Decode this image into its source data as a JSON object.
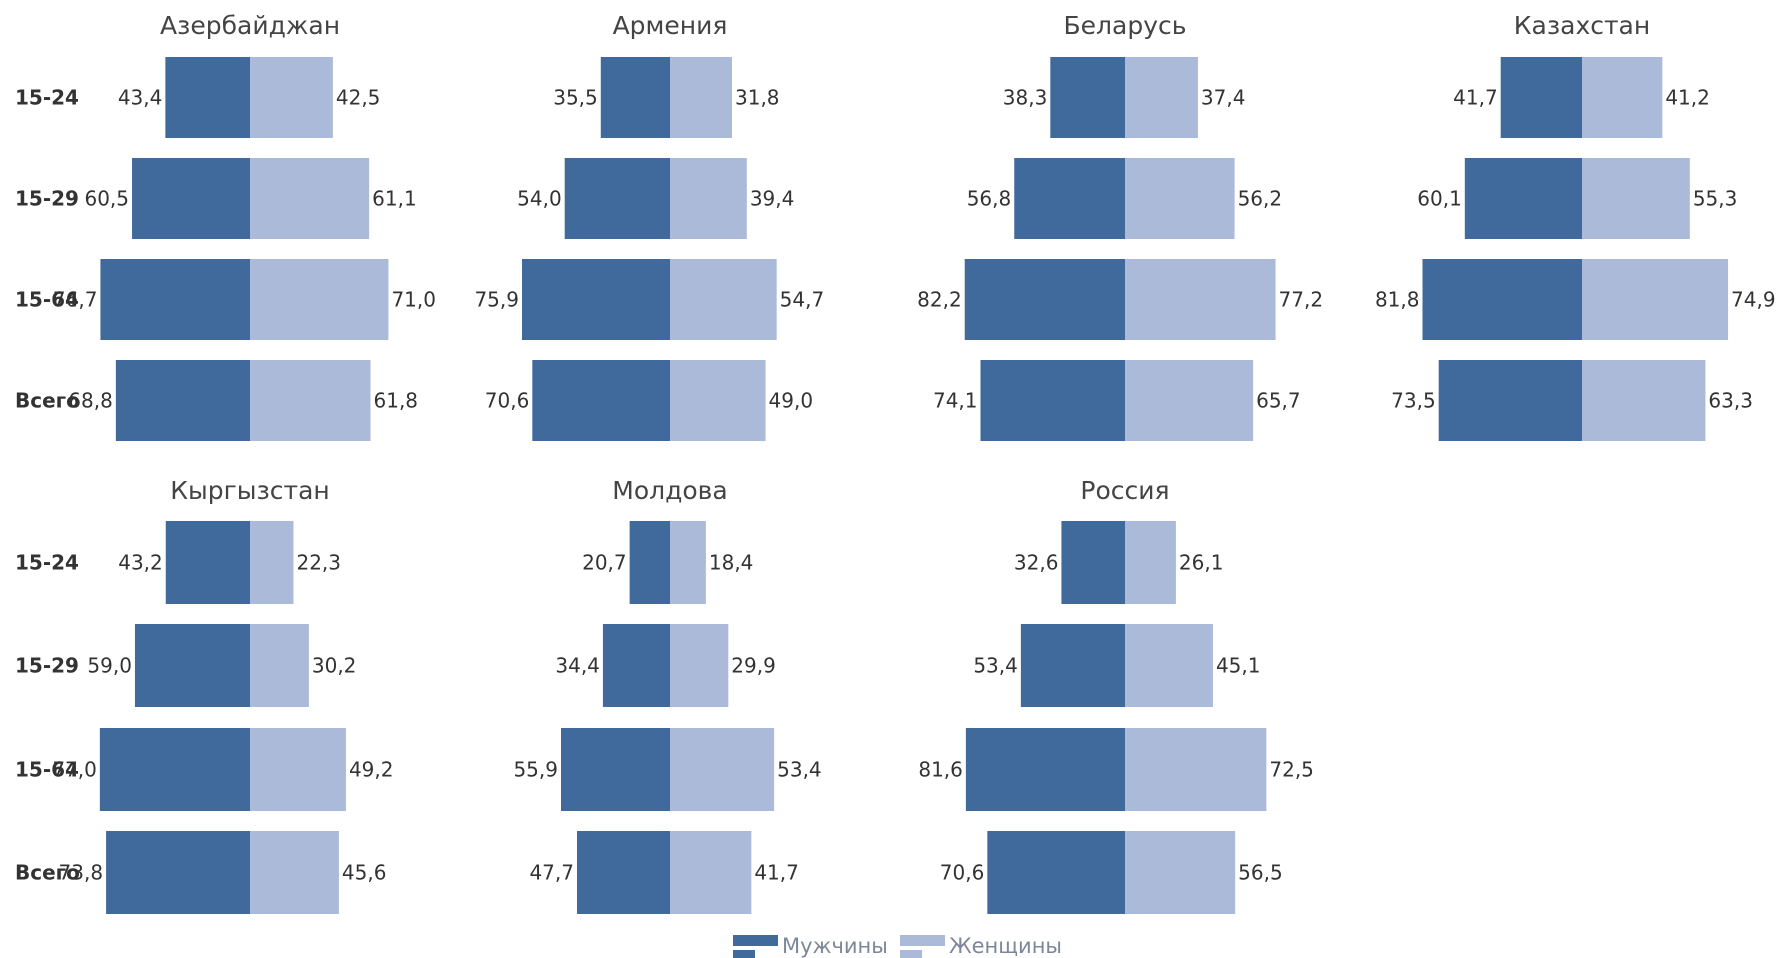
{
  "chart_data": {
    "type": "bar",
    "orientation": "horizontal-diverging",
    "categories": [
      "15-24",
      "15-29",
      "15-64",
      "Всего"
    ],
    "legend": {
      "position": "bottom-center",
      "items": [
        {
          "name": "Мужчины",
          "color": "#406a9c"
        },
        {
          "name": "Женщины",
          "color": "#abbad8"
        }
      ]
    },
    "colors": {
      "male": "#406a9c",
      "female": "#abbad8"
    },
    "panels": [
      {
        "title": "Азербайджан",
        "male": [
          43.4,
          60.5,
          76.7,
          68.8
        ],
        "female": [
          42.5,
          61.1,
          71.0,
          61.8
        ],
        "male_labels": [
          "43,4",
          "60,5",
          "76,7",
          "68,8"
        ],
        "female_labels": [
          "42,5",
          "61,1",
          "71,0",
          "61,8"
        ]
      },
      {
        "title": "Армения",
        "male": [
          35.5,
          54.0,
          75.9,
          70.6
        ],
        "female": [
          31.8,
          39.4,
          54.7,
          49.0
        ],
        "male_labels": [
          "35,5",
          "54,0",
          "75,9",
          "70,6"
        ],
        "female_labels": [
          "31,8",
          "39,4",
          "54,7",
          "49,0"
        ]
      },
      {
        "title": "Беларусь",
        "male": [
          38.3,
          56.8,
          82.2,
          74.1
        ],
        "female": [
          37.4,
          56.2,
          77.2,
          65.7
        ],
        "male_labels": [
          "38,3",
          "56,8",
          "82,2",
          "74,1"
        ],
        "female_labels": [
          "37,4",
          "56,2",
          "77,2",
          "65,7"
        ]
      },
      {
        "title": "Казахстан",
        "male": [
          41.7,
          60.1,
          81.8,
          73.5
        ],
        "female": [
          41.2,
          55.3,
          74.9,
          63.3
        ],
        "male_labels": [
          "41,7",
          "60,1",
          "81,8",
          "73,5"
        ],
        "female_labels": [
          "41,2",
          "55,3",
          "74,9",
          "63,3"
        ]
      },
      {
        "title": "Кыргызстан",
        "male": [
          43.2,
          59.0,
          77.0,
          73.8
        ],
        "female": [
          22.3,
          30.2,
          49.2,
          45.6
        ],
        "male_labels": [
          "43,2",
          "59,0",
          "77,0",
          "73,8"
        ],
        "female_labels": [
          "22,3",
          "30,2",
          "49,2",
          "45,6"
        ]
      },
      {
        "title": "Молдова",
        "male": [
          20.7,
          34.4,
          55.9,
          47.7
        ],
        "female": [
          18.4,
          29.9,
          53.4,
          41.7
        ],
        "male_labels": [
          "20,7",
          "34,4",
          "55,9",
          "47,7"
        ],
        "female_labels": [
          "18,4",
          "29,9",
          "53,4",
          "41,7"
        ]
      },
      {
        "title": "Россия",
        "male": [
          32.6,
          53.4,
          81.6,
          70.6
        ],
        "female": [
          26.1,
          45.1,
          72.5,
          56.5
        ],
        "male_labels": [
          "32,6",
          "53,4",
          "81,6",
          "70,6"
        ],
        "female_labels": [
          "26,1",
          "45,1",
          "72,5",
          "56,5"
        ]
      }
    ]
  }
}
